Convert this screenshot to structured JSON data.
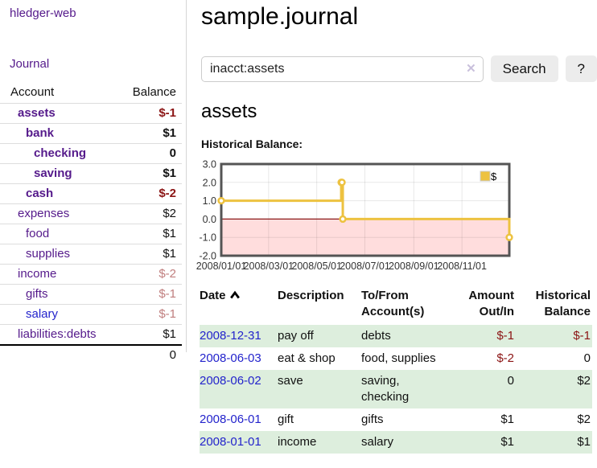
{
  "colors": {
    "link_purple": "#551a8b",
    "link_blue": "#2323cc",
    "negative_strong": "#8b1414",
    "negative_faded": "#c07e7e",
    "row_green": "#ddeedd",
    "series_gold": "#edc240",
    "zero_line_red": "#8b1a1a",
    "negative_region_pink": "#ffdddd"
  },
  "sidebar": {
    "app_title": "hledger-web",
    "journal_label": "Journal",
    "accounts_table": {
      "account_header": "Account",
      "balance_header": "Balance",
      "rows": [
        {
          "name": "assets",
          "indent": 0,
          "bold": true,
          "link": "purple",
          "balance": "$-1",
          "tone": "neg-strong"
        },
        {
          "name": "bank",
          "indent": 1,
          "bold": true,
          "link": "purple",
          "balance": "$1",
          "tone": "normal"
        },
        {
          "name": "checking",
          "indent": 2,
          "bold": true,
          "link": "purple",
          "balance": "0",
          "tone": "normal"
        },
        {
          "name": "saving",
          "indent": 2,
          "bold": true,
          "link": "purple",
          "balance": "$1",
          "tone": "normal"
        },
        {
          "name": "cash",
          "indent": 1,
          "bold": true,
          "link": "purple",
          "balance": "$-2",
          "tone": "neg-strong"
        },
        {
          "name": "expenses",
          "indent": 0,
          "bold": false,
          "link": "purple",
          "balance": "$2",
          "tone": "normal"
        },
        {
          "name": "food",
          "indent": 1,
          "bold": false,
          "link": "purple",
          "balance": "$1",
          "tone": "normal"
        },
        {
          "name": "supplies",
          "indent": 1,
          "bold": false,
          "link": "purple",
          "balance": "$1",
          "tone": "normal"
        },
        {
          "name": "income",
          "indent": 0,
          "bold": false,
          "link": "purple",
          "balance": "$-2",
          "tone": "neg-faded"
        },
        {
          "name": "gifts",
          "indent": 1,
          "bold": false,
          "link": "purple",
          "balance": "$-1",
          "tone": "neg-faded"
        },
        {
          "name": "salary",
          "indent": 1,
          "bold": false,
          "link": "blue",
          "balance": "$-1",
          "tone": "neg-faded"
        },
        {
          "name": "liabilities:debts",
          "indent": 0,
          "bold": false,
          "link": "purple",
          "balance": "$1",
          "tone": "normal"
        }
      ],
      "total": "0"
    }
  },
  "header": {
    "title": "sample.journal"
  },
  "search": {
    "query": "inacct:assets",
    "clear_icon": "✕",
    "button_label": "Search",
    "help_label": "?"
  },
  "account_page": {
    "heading": "assets",
    "chart_title": "Historical Balance:"
  },
  "chart_data": {
    "type": "line",
    "step": true,
    "title": "Historical Balance:",
    "series": [
      {
        "name": "$",
        "color": "#edc240",
        "points": [
          [
            "2008-01-01",
            1
          ],
          [
            "2008-06-01",
            2
          ],
          [
            "2008-06-02",
            2
          ],
          [
            "2008-06-03",
            0
          ],
          [
            "2008-12-31",
            -1
          ]
        ]
      }
    ],
    "xrange": [
      "2008-01-01",
      "2008-12-31"
    ],
    "ylim": [
      -2,
      3
    ],
    "xtick_labels": [
      "2008/01/01",
      "2008/03/01",
      "2008/05/01",
      "2008/07/01",
      "2008/09/01",
      "2008/11/01"
    ],
    "ytick_labels": [
      "3.0",
      "2.0",
      "1.0",
      "0.0",
      "-1.0",
      "-2.0"
    ],
    "grid": true,
    "legend_position": "top-right",
    "legend_label": "$"
  },
  "register_table": {
    "headers": {
      "date": "Date",
      "description": "Description",
      "accounts": "To/From Account(s)",
      "amount": "Amount Out/In",
      "balance": "Historical Balance"
    },
    "rows": [
      {
        "date": "2008-12-31",
        "description": "pay off",
        "accounts": [
          "debts"
        ],
        "amount": "$-1",
        "amount_tone": "neg-strong",
        "balance": "$-1",
        "balance_tone": "neg-strong"
      },
      {
        "date": "2008-06-03",
        "description": "eat & shop",
        "accounts": [
          "food",
          "supplies"
        ],
        "amount": "$-2",
        "amount_tone": "neg-strong",
        "balance": "0",
        "balance_tone": "normal"
      },
      {
        "date": "2008-06-02",
        "description": "save",
        "accounts": [
          "saving",
          "checking"
        ],
        "amount": "0",
        "amount_tone": "normal",
        "balance": "$2",
        "balance_tone": "normal"
      },
      {
        "date": "2008-06-01",
        "description": "gift",
        "accounts": [
          "gifts"
        ],
        "amount": "$1",
        "amount_tone": "normal",
        "balance": "$2",
        "balance_tone": "normal"
      },
      {
        "date": "2008-01-01",
        "description": "income",
        "accounts": [
          "salary"
        ],
        "amount": "$1",
        "amount_tone": "normal",
        "balance": "$1",
        "balance_tone": "normal"
      }
    ]
  }
}
